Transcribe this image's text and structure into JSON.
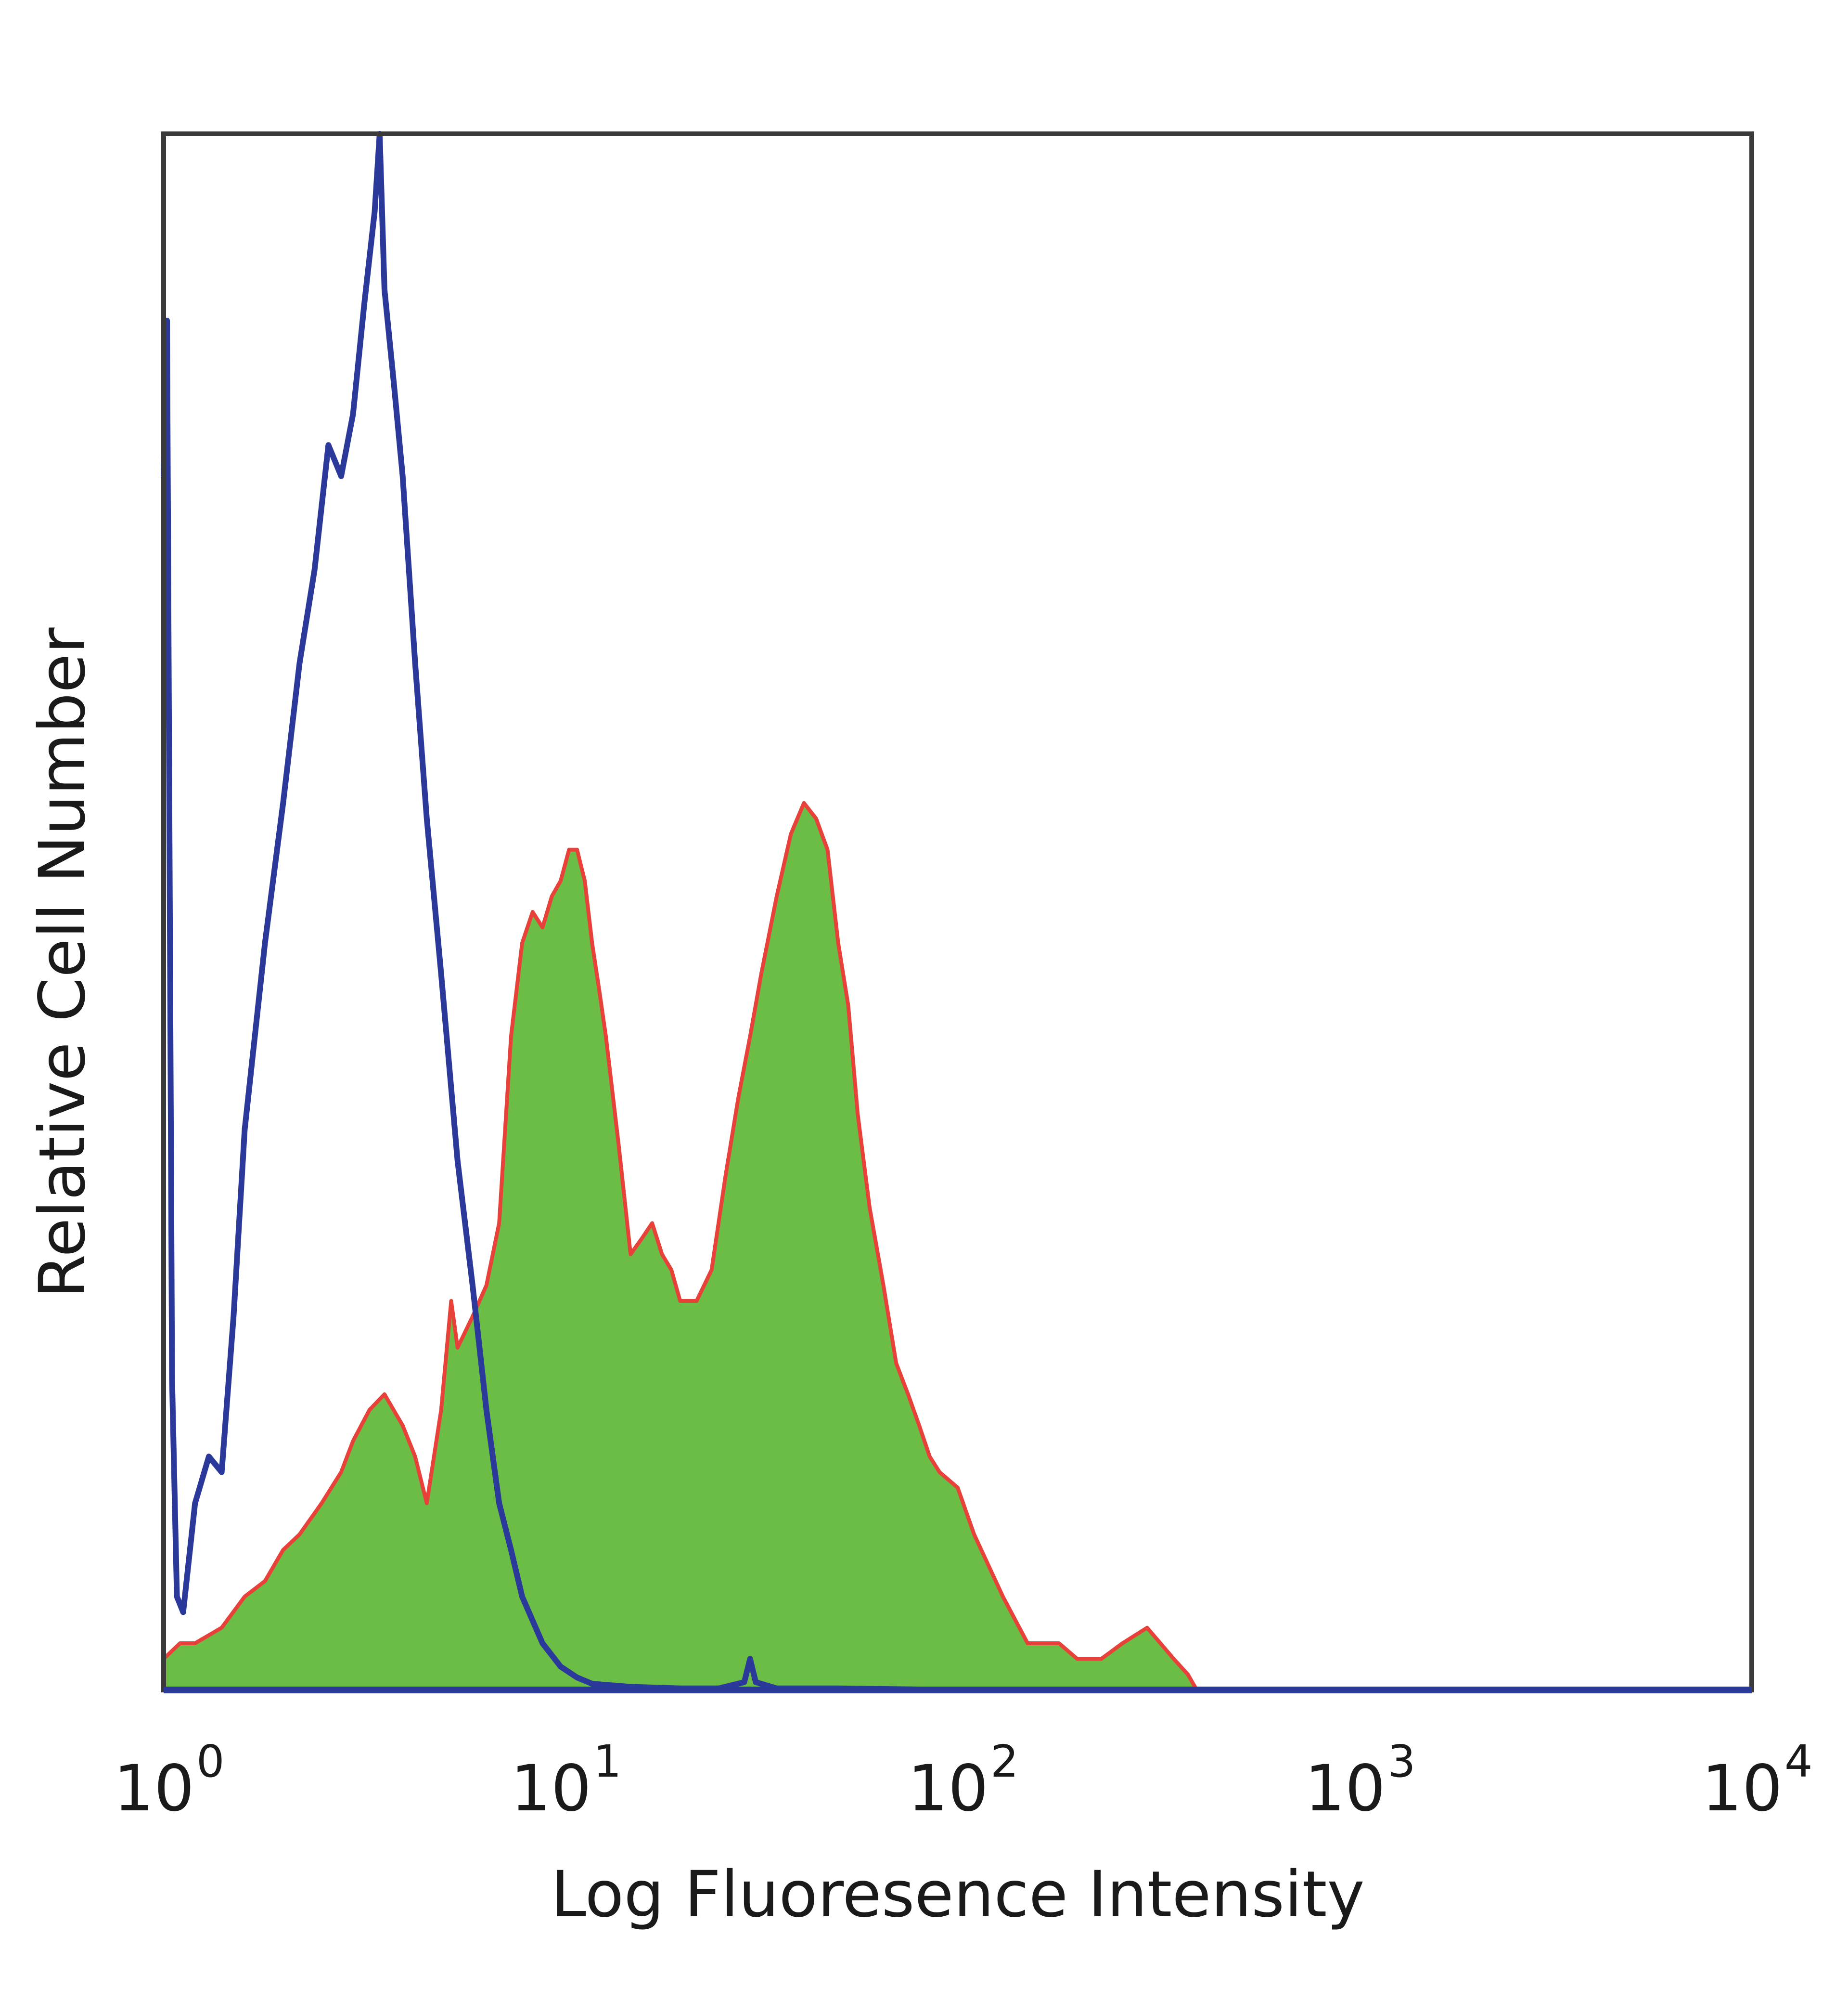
{
  "chart_data": {
    "type": "area",
    "title": "",
    "xlabel": "Log Fluoresence Intensity",
    "ylabel": "Relative Cell Number",
    "x_scale": "log",
    "xlim": [
      1,
      10000
    ],
    "ylim": [
      0,
      100
    ],
    "grid": false,
    "legend": "none",
    "x_ticks": [
      {
        "value": 1,
        "base": "10",
        "exp": "0"
      },
      {
        "value": 10,
        "base": "10",
        "exp": "1"
      },
      {
        "value": 100,
        "base": "10",
        "exp": "2"
      },
      {
        "value": 1000,
        "base": "10",
        "exp": "3"
      },
      {
        "value": 10000,
        "base": "10",
        "exp": "4"
      }
    ],
    "series": [
      {
        "style": "outline",
        "color": "#2b3a9a",
        "x": [
          1.0,
          1.02,
          1.05,
          1.08,
          1.12,
          1.2,
          1.3,
          1.4,
          1.5,
          1.6,
          1.8,
          2.0,
          2.2,
          2.4,
          2.6,
          2.8,
          3.0,
          3.2,
          3.4,
          3.5,
          3.6,
          3.8,
          4.0,
          4.3,
          4.6,
          5.0,
          5.5,
          6.0,
          6.5,
          7.0,
          7.5,
          8.0,
          9.0,
          10.0,
          11.0,
          12.0,
          15.0,
          20.0,
          25.0,
          29.0,
          30.0,
          31.0,
          35.0,
          50.0,
          100.0,
          1000.0,
          10000.0
        ],
        "y": [
          78,
          88,
          20,
          6,
          5,
          12,
          15,
          14,
          24,
          36,
          48,
          57,
          66,
          72,
          80,
          78,
          82,
          89,
          95,
          100,
          90,
          84,
          78,
          66,
          56,
          46,
          34,
          26,
          18,
          12,
          9,
          6,
          3,
          1.5,
          0.8,
          0.4,
          0.2,
          0.1,
          0.1,
          0.5,
          2.0,
          0.5,
          0.1,
          0.1,
          0,
          0,
          0
        ]
      },
      {
        "style": "filled",
        "fill_color": "#6bbd46",
        "line_color": "#e8413a",
        "x": [
          1.0,
          1.1,
          1.2,
          1.4,
          1.6,
          1.8,
          2.0,
          2.2,
          2.5,
          2.8,
          3.0,
          3.3,
          3.6,
          4.0,
          4.3,
          4.6,
          5.0,
          5.3,
          5.5,
          6.0,
          6.5,
          7.0,
          7.5,
          8.0,
          8.5,
          9.0,
          9.5,
          10.0,
          10.5,
          11.0,
          11.5,
          12.0,
          12.5,
          13.0,
          14.0,
          15.0,
          16.0,
          17.0,
          18.0,
          19.0,
          20.0,
          22.0,
          24.0,
          26.0,
          28.0,
          30.0,
          32.0,
          35.0,
          38.0,
          41.0,
          44.0,
          47.0,
          50.0,
          53.0,
          56.0,
          60.0,
          65.0,
          70.0,
          75.0,
          80.0,
          85.0,
          90.0,
          100.0,
          110.0,
          130.0,
          150.0,
          180.0,
          200.0,
          230.0,
          260.0,
          300.0,
          350.0,
          380.0,
          400.0,
          1000.0,
          10000.0
        ],
        "y": [
          2,
          3,
          3,
          4,
          6,
          7,
          9,
          10,
          12,
          14,
          16,
          18,
          19,
          17,
          15,
          12,
          18,
          25,
          22,
          24,
          26,
          30,
          42,
          48,
          50,
          49,
          51,
          52,
          54,
          54,
          52,
          48,
          45,
          42,
          35,
          28,
          29,
          30,
          28,
          27,
          25,
          25,
          27,
          33,
          38,
          42,
          46,
          51,
          55,
          57,
          56,
          54,
          48,
          44,
          37,
          31,
          26,
          21,
          19,
          17,
          15,
          14,
          13,
          10,
          6,
          3,
          3,
          2,
          2,
          3,
          4,
          2,
          1,
          0,
          0,
          0
        ]
      }
    ]
  }
}
